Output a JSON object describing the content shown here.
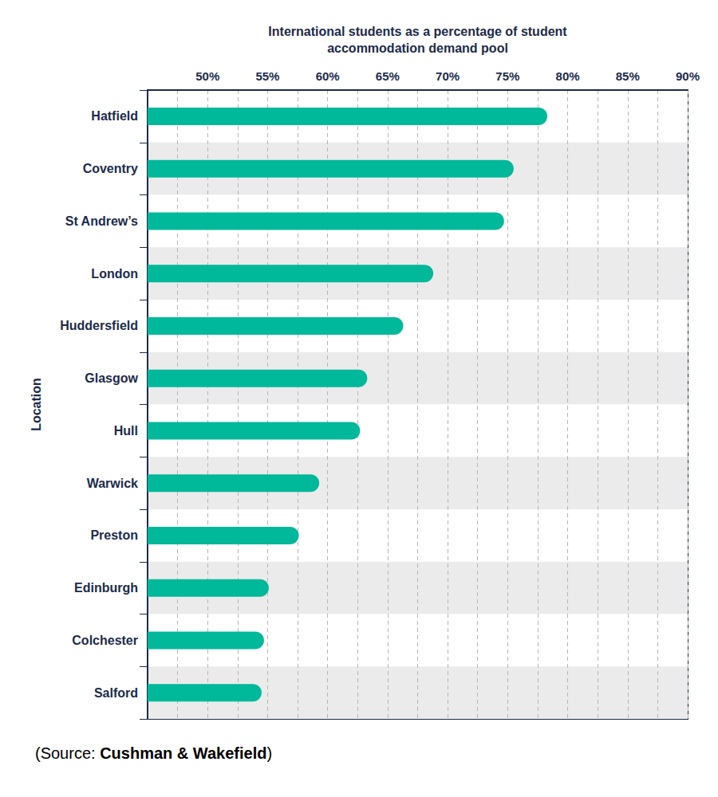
{
  "chart_data": {
    "type": "bar",
    "orientation": "horizontal",
    "xlabel": "International students as a percentage of student\naccommodation demand pool",
    "ylabel": "Location",
    "categories": [
      "Hatfield",
      "Coventry",
      "St Andrew’s",
      "London",
      "Huddersfield",
      "Glasgow",
      "Hull",
      "Warwick",
      "Preston",
      "Edinburgh",
      "Colchester",
      "Salford"
    ],
    "values": [
      78.3,
      75.5,
      74.7,
      68.8,
      66.3,
      63.3,
      62.7,
      59.3,
      57.6,
      55.1,
      54.7,
      54.5
    ],
    "color": "#00b99a",
    "xlim": [
      45,
      90
    ],
    "xticks": [
      {
        "value": 50,
        "label": "50%"
      },
      {
        "value": 55,
        "label": "55%"
      },
      {
        "value": 60,
        "label": "60%"
      },
      {
        "value": 65,
        "label": "65%"
      },
      {
        "value": 70,
        "label": "70%"
      },
      {
        "value": 75,
        "label": "75%"
      },
      {
        "value": 80,
        "label": "80%"
      },
      {
        "value": 85,
        "label": "85%"
      },
      {
        "value": 90,
        "label": "90%"
      }
    ],
    "grid": true,
    "source": [
      "(Source: ",
      "Cushman & Wakefield",
      ")"
    ]
  }
}
